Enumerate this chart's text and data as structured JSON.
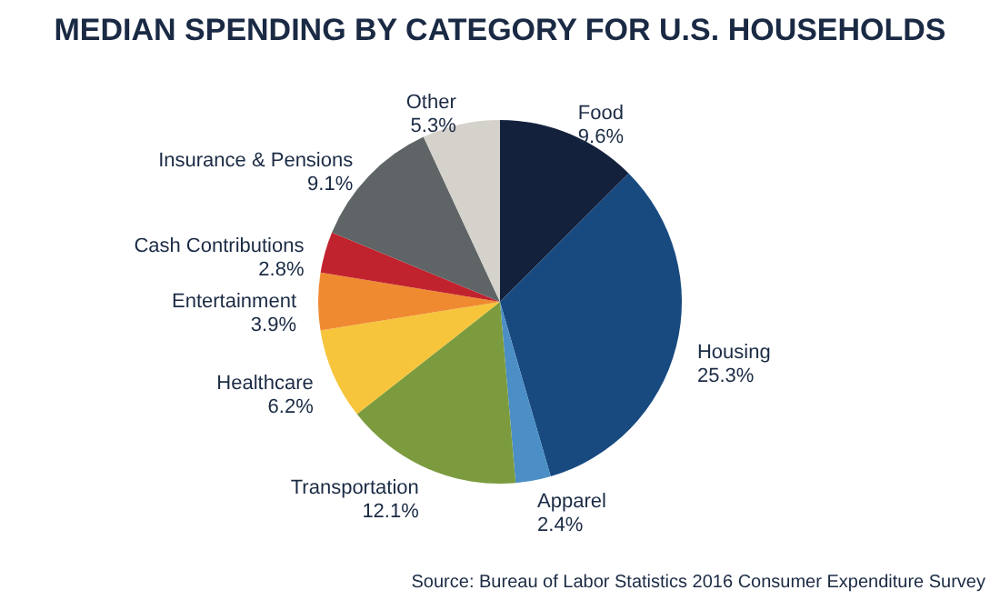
{
  "chart_data": {
    "type": "pie",
    "title": "MEDIAN SPENDING BY CATEGORY FOR U.S. HOUSEHOLDS",
    "categories": [
      "Food",
      "Housing",
      "Apparel",
      "Transportation",
      "Healthcare",
      "Entertainment",
      "Cash Contributions",
      "Insurance & Pensions",
      "Other"
    ],
    "values": [
      9.6,
      25.3,
      2.4,
      12.1,
      6.2,
      3.9,
      2.8,
      9.1,
      5.3
    ],
    "value_labels": [
      "9.6%",
      "25.3%",
      "2.4%",
      "12.1%",
      "6.2%",
      "3.9%",
      "2.8%",
      "9.1%",
      "5.3%"
    ],
    "colors": [
      "#14213d",
      "#184a80",
      "#4b8fc6",
      "#7b9b3e",
      "#f6c53c",
      "#ef8a31",
      "#c1232e",
      "#5f6566",
      "#d4d2cb"
    ],
    "legend": false,
    "annotations": [
      "Source: Bureau of Labor Statistics 2016 Consumer Expenditure Survey"
    ]
  }
}
